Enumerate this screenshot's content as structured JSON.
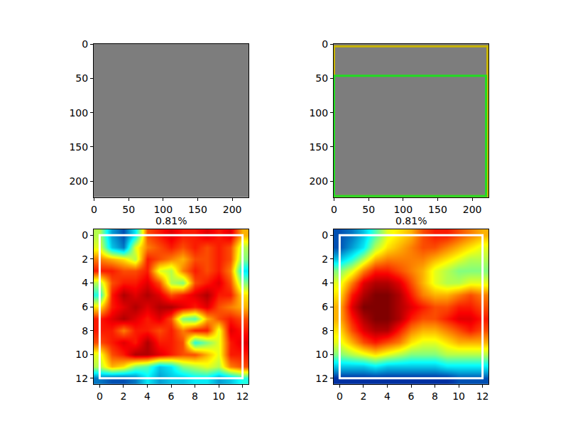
{
  "chart_data": [
    {
      "type": "image",
      "xlim": [
        -0.5,
        223.5
      ],
      "ylim": [
        223.5,
        -0.5
      ],
      "xticks": [
        0,
        50,
        100,
        150,
        200
      ],
      "yticks": [
        0,
        50,
        100,
        150,
        200
      ]
    },
    {
      "type": "image",
      "xlim": [
        -0.5,
        223.5
      ],
      "ylim": [
        223.5,
        -0.5
      ],
      "xticks": [
        0,
        50,
        100,
        150,
        200
      ],
      "yticks": [
        0,
        50,
        100,
        150,
        200
      ],
      "boxes": [
        {
          "x0": 0,
          "y0": 3,
          "x1": 222,
          "y1": 222,
          "color": "#c8b400"
        },
        {
          "x0": 0,
          "y0": 46,
          "x1": 220,
          "y1": 222,
          "color": "#22dd22"
        }
      ]
    },
    {
      "type": "heatmap",
      "title": "0.81%",
      "xlim": [
        -0.5,
        12.5
      ],
      "ylim": [
        12.5,
        -0.5
      ],
      "xticks": [
        0,
        2,
        4,
        6,
        8,
        10,
        12
      ],
      "yticks": [
        0,
        2,
        4,
        6,
        8,
        10,
        12
      ],
      "zlim": [
        0,
        1
      ],
      "box": {
        "x0": 0,
        "y0": 0,
        "x1": 12,
        "y1": 12,
        "color": "#ffffff"
      },
      "z": [
        [
          0.55,
          0.25,
          0.15,
          0.35,
          0.8,
          0.85,
          0.9,
          0.85,
          0.85,
          0.9,
          0.85,
          0.9,
          0.7
        ],
        [
          0.6,
          0.3,
          0.2,
          0.6,
          0.75,
          0.8,
          0.85,
          0.8,
          0.85,
          0.8,
          0.85,
          0.8,
          0.55
        ],
        [
          0.75,
          0.7,
          0.65,
          0.55,
          0.85,
          0.8,
          0.75,
          0.7,
          0.8,
          0.8,
          0.85,
          0.8,
          0.5
        ],
        [
          0.85,
          0.85,
          0.8,
          0.8,
          0.85,
          0.6,
          0.55,
          0.75,
          0.85,
          0.8,
          0.85,
          0.75,
          0.35
        ],
        [
          0.55,
          0.8,
          0.85,
          0.85,
          0.9,
          0.8,
          0.55,
          0.5,
          0.8,
          0.85,
          0.9,
          0.8,
          0.5
        ],
        [
          0.4,
          0.85,
          0.95,
          0.9,
          0.95,
          0.9,
          0.8,
          0.85,
          0.9,
          0.95,
          0.85,
          0.85,
          0.65
        ],
        [
          0.65,
          0.85,
          0.9,
          0.95,
          0.9,
          0.95,
          0.95,
          0.9,
          0.85,
          0.9,
          0.8,
          0.75,
          0.7
        ],
        [
          0.85,
          0.9,
          0.95,
          0.9,
          0.85,
          0.9,
          0.8,
          0.5,
          0.45,
          0.7,
          0.8,
          0.85,
          0.8
        ],
        [
          0.85,
          0.85,
          0.75,
          0.85,
          0.85,
          0.8,
          0.85,
          0.75,
          0.85,
          0.85,
          0.6,
          0.9,
          0.85
        ],
        [
          0.8,
          0.85,
          0.9,
          0.85,
          0.95,
          0.85,
          0.85,
          0.8,
          0.4,
          0.5,
          0.6,
          0.85,
          0.9
        ],
        [
          0.6,
          0.8,
          0.85,
          0.95,
          0.95,
          0.9,
          0.85,
          0.8,
          0.8,
          0.7,
          0.6,
          0.85,
          0.85
        ],
        [
          0.55,
          0.7,
          0.65,
          0.5,
          0.45,
          0.3,
          0.35,
          0.5,
          0.55,
          0.6,
          0.55,
          0.75,
          0.8
        ],
        [
          0.2,
          0.15,
          0.15,
          0.2,
          0.35,
          0.25,
          0.3,
          0.3,
          0.35,
          0.35,
          0.25,
          0.3,
          0.4
        ]
      ]
    },
    {
      "type": "heatmap",
      "title": "0.81%",
      "xlim": [
        -0.5,
        12.5
      ],
      "ylim": [
        12.5,
        -0.5
      ],
      "xticks": [
        0,
        2,
        4,
        6,
        8,
        10,
        12
      ],
      "yticks": [
        0,
        2,
        4,
        6,
        8,
        10,
        12
      ],
      "zlim": [
        0,
        1
      ],
      "box": {
        "x0": 0,
        "y0": 0,
        "x1": 12,
        "y1": 12,
        "color": "#ffffff"
      },
      "z": [
        [
          0.15,
          0.2,
          0.3,
          0.45,
          0.6,
          0.65,
          0.7,
          0.8,
          0.85,
          0.85,
          0.8,
          0.75,
          0.7
        ],
        [
          0.15,
          0.25,
          0.35,
          0.55,
          0.65,
          0.7,
          0.75,
          0.8,
          0.8,
          0.75,
          0.7,
          0.65,
          0.6
        ],
        [
          0.3,
          0.4,
          0.55,
          0.7,
          0.75,
          0.75,
          0.75,
          0.75,
          0.7,
          0.65,
          0.6,
          0.55,
          0.55
        ],
        [
          0.5,
          0.6,
          0.75,
          0.85,
          0.85,
          0.8,
          0.75,
          0.7,
          0.6,
          0.55,
          0.5,
          0.5,
          0.5
        ],
        [
          0.6,
          0.75,
          0.9,
          0.95,
          0.95,
          0.9,
          0.8,
          0.7,
          0.6,
          0.55,
          0.55,
          0.6,
          0.6
        ],
        [
          0.65,
          0.85,
          0.95,
          1,
          1,
          0.95,
          0.85,
          0.75,
          0.7,
          0.7,
          0.75,
          0.8,
          0.75
        ],
        [
          0.7,
          0.9,
          1,
          1,
          1,
          0.95,
          0.9,
          0.85,
          0.8,
          0.8,
          0.85,
          0.85,
          0.8
        ],
        [
          0.7,
          0.85,
          0.95,
          1,
          1,
          0.95,
          0.85,
          0.8,
          0.8,
          0.85,
          0.9,
          0.9,
          0.85
        ],
        [
          0.65,
          0.8,
          0.9,
          0.95,
          0.95,
          0.85,
          0.75,
          0.7,
          0.7,
          0.75,
          0.8,
          0.85,
          0.8
        ],
        [
          0.6,
          0.7,
          0.8,
          0.85,
          0.8,
          0.75,
          0.65,
          0.6,
          0.6,
          0.65,
          0.7,
          0.7,
          0.7
        ],
        [
          0.5,
          0.55,
          0.6,
          0.65,
          0.6,
          0.55,
          0.5,
          0.5,
          0.5,
          0.55,
          0.55,
          0.55,
          0.55
        ],
        [
          0.3,
          0.3,
          0.3,
          0.35,
          0.3,
          0.3,
          0.3,
          0.3,
          0.3,
          0.35,
          0.35,
          0.35,
          0.35
        ],
        [
          0.1,
          0.1,
          0.1,
          0.1,
          0.1,
          0.1,
          0.1,
          0.1,
          0.1,
          0.1,
          0.15,
          0.15,
          0.15
        ]
      ]
    }
  ]
}
